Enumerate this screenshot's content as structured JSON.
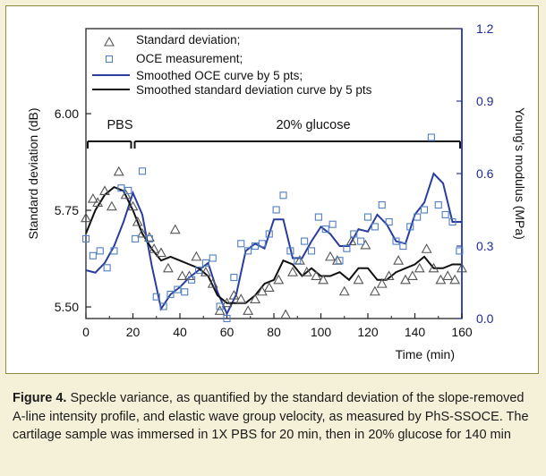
{
  "chart_data": {
    "type": "line",
    "xlabel": "Time (min)",
    "ylabel": "Standard deviation (dB)",
    "y2label": "Young's modulus (MPa)",
    "xlim": [
      0,
      160
    ],
    "ylim": [
      5.47,
      6.22
    ],
    "y2lim": [
      0,
      1.2
    ],
    "xticks": [
      0,
      20,
      40,
      60,
      80,
      100,
      120,
      140,
      160
    ],
    "yticks": [
      5.5,
      5.75,
      6.0
    ],
    "y2ticks": [
      0.0,
      0.3,
      0.6,
      0.9,
      1.2
    ],
    "xtick_labels": [
      "0",
      "20",
      "40",
      "60",
      "80",
      "100",
      "120",
      "140",
      "160"
    ],
    "ytick_labels": [
      "5.50",
      "5.75",
      "6.00"
    ],
    "y2tick_labels": [
      "0.0",
      "0.3",
      "0.6",
      "0.9",
      "1.2"
    ],
    "annotations": [
      {
        "text": "PBS",
        "x_range": [
          0,
          20
        ]
      },
      {
        "text": "20% glucose",
        "x_range": [
          20,
          160
        ]
      }
    ],
    "legend_position": "top-left",
    "series": [
      {
        "name": "Standard deviation;",
        "axis": "left",
        "kind": "scatter",
        "marker": "triangle",
        "color": "#555555",
        "x": [
          0,
          3,
          5,
          8,
          11,
          14,
          17,
          20,
          22,
          24,
          27,
          29,
          32,
          35,
          38,
          41,
          44,
          47,
          51,
          54,
          57,
          60,
          63,
          66,
          69,
          72,
          75,
          78,
          82,
          85,
          88,
          91,
          94,
          98,
          101,
          104,
          107,
          110,
          113,
          116,
          119,
          123,
          126,
          129,
          133,
          136,
          139,
          142,
          145,
          148,
          151,
          154,
          157,
          160
        ],
        "y": [
          5.73,
          5.78,
          5.77,
          5.8,
          5.76,
          5.85,
          5.79,
          5.76,
          5.72,
          5.69,
          5.68,
          5.65,
          5.64,
          5.6,
          5.7,
          5.58,
          5.58,
          5.63,
          5.59,
          5.56,
          5.49,
          5.51,
          5.53,
          5.52,
          5.49,
          5.52,
          5.54,
          5.55,
          5.57,
          5.48,
          5.59,
          5.62,
          5.59,
          5.58,
          5.57,
          5.63,
          5.62,
          5.54,
          5.67,
          5.57,
          5.66,
          5.54,
          5.56,
          5.58,
          5.62,
          5.57,
          5.58,
          5.6,
          5.65,
          5.6,
          5.57,
          5.58,
          5.57,
          5.6
        ]
      },
      {
        "name": "OCE measurement;",
        "axis": "right",
        "kind": "scatter",
        "marker": "square",
        "color": "#4f7fc3",
        "x": [
          0,
          3,
          6,
          9,
          12,
          15,
          18,
          21,
          24,
          27,
          30,
          33,
          36,
          39,
          42,
          45,
          48,
          51,
          54,
          57,
          60,
          63,
          66,
          69,
          72,
          75,
          78,
          81,
          84,
          87,
          90,
          93,
          96,
          99,
          102,
          105,
          108,
          111,
          114,
          117,
          120,
          123,
          126,
          129,
          132,
          135,
          138,
          141,
          144,
          147,
          150,
          153,
          156,
          159
        ],
        "y": [
          0.33,
          0.26,
          0.28,
          0.21,
          0.28,
          0.54,
          0.53,
          0.33,
          0.61,
          0.33,
          0.09,
          0.05,
          0.1,
          0.12,
          0.11,
          0.16,
          0.2,
          0.23,
          0.25,
          0.05,
          0.0,
          0.17,
          0.31,
          0.28,
          0.3,
          0.31,
          0.35,
          0.45,
          0.51,
          0.28,
          0.24,
          0.32,
          0.28,
          0.42,
          0.37,
          0.39,
          0.24,
          0.29,
          0.35,
          0.32,
          0.42,
          0.38,
          0.47,
          0.4,
          0.32,
          0.3,
          0.38,
          0.42,
          0.45,
          0.75,
          0.47,
          0.43,
          0.4,
          0.28
        ]
      },
      {
        "name": "Smoothed OCE curve by 5 pts;",
        "axis": "right",
        "kind": "line",
        "color": "#2a3d9e",
        "x": [
          0,
          4,
          8,
          12,
          16,
          20,
          24,
          28,
          32,
          36,
          40,
          44,
          48,
          52,
          56,
          60,
          64,
          68,
          72,
          76,
          80,
          84,
          88,
          92,
          96,
          100,
          104,
          108,
          112,
          116,
          120,
          124,
          128,
          132,
          136,
          140,
          144,
          148,
          152,
          156,
          160
        ],
        "y": [
          0.2,
          0.19,
          0.23,
          0.3,
          0.4,
          0.52,
          0.43,
          0.22,
          0.04,
          0.1,
          0.13,
          0.17,
          0.2,
          0.23,
          0.11,
          0.02,
          0.1,
          0.28,
          0.31,
          0.29,
          0.41,
          0.41,
          0.25,
          0.25,
          0.32,
          0.38,
          0.35,
          0.3,
          0.3,
          0.37,
          0.36,
          0.43,
          0.39,
          0.32,
          0.31,
          0.43,
          0.48,
          0.6,
          0.56,
          0.4,
          0.4
        ]
      },
      {
        "name": "Smoothed standard deviation curve by 5 pts",
        "axis": "left",
        "kind": "line",
        "color": "#111111",
        "x": [
          0,
          4,
          8,
          12,
          16,
          20,
          24,
          28,
          32,
          36,
          40,
          44,
          48,
          52,
          56,
          60,
          64,
          68,
          72,
          76,
          80,
          84,
          88,
          92,
          96,
          100,
          104,
          108,
          112,
          116,
          120,
          124,
          128,
          132,
          136,
          140,
          144,
          148,
          152,
          156,
          160
        ],
        "y": [
          5.69,
          5.75,
          5.79,
          5.81,
          5.8,
          5.75,
          5.69,
          5.65,
          5.62,
          5.63,
          5.62,
          5.61,
          5.6,
          5.58,
          5.53,
          5.51,
          5.51,
          5.51,
          5.53,
          5.56,
          5.57,
          5.62,
          5.61,
          5.58,
          5.6,
          5.58,
          5.58,
          5.59,
          5.57,
          5.6,
          5.6,
          5.57,
          5.57,
          5.59,
          5.6,
          5.61,
          5.63,
          5.6,
          5.6,
          5.61,
          5.61
        ]
      }
    ]
  },
  "caption": {
    "label": "Figure 4.",
    "text": " Speckle variance, as quantified by the standard deviation of the slope-removed A-line intensity profile, and elastic wave group velocity, as measured by PhS-SSOCE. The cartilage sample was immersed in 1X PBS for 20 min, then in 20% glucose for 140 min"
  }
}
